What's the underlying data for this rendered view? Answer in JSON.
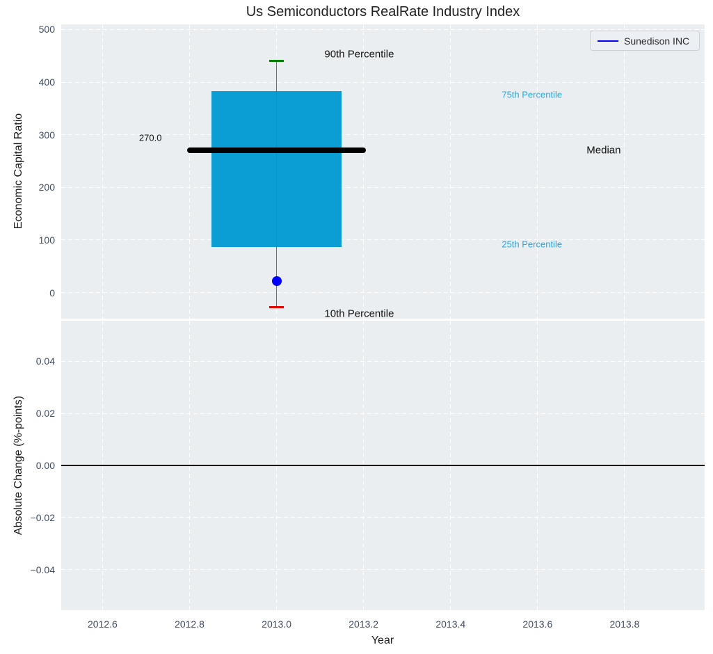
{
  "figure_title": "Us Semiconductors RealRate Industry Index",
  "legend": {
    "label": "Sunedison INC",
    "line_color": "#0000ff"
  },
  "colors": {
    "plot_bg": "#ebeef0",
    "grid": "#ffffff",
    "box_fill": "#0a9ed4",
    "median_line": "#000000",
    "whisker": "#6e6e6e",
    "cap_90": "#008000",
    "cap_10": "#e50000",
    "company_point": "#0000ff",
    "tick_label": "#3e4b63",
    "axis_label": "#1a1a1a",
    "percentile_label": "#2aa5dc",
    "zero_line": "#000000"
  },
  "chart_data": [
    {
      "type": "boxplot",
      "title": "Us Semiconductors RealRate Industry Index",
      "ylabel": "Economic Capital Ratio",
      "xlim": [
        2012.505,
        2013.984
      ],
      "ylim": [
        -49.6,
        509.9
      ],
      "grid": true,
      "yticks": [
        {
          "v": 0,
          "label": "0"
        },
        {
          "v": 100,
          "label": "100"
        },
        {
          "v": 200,
          "label": "200"
        },
        {
          "v": 300,
          "label": "300"
        },
        {
          "v": 400,
          "label": "400"
        },
        {
          "v": 500,
          "label": "500"
        }
      ],
      "xticks": [
        {
          "v": 2012.6,
          "label": ""
        },
        {
          "v": 2012.8,
          "label": ""
        },
        {
          "v": 2013.0,
          "label": ""
        },
        {
          "v": 2013.2,
          "label": ""
        },
        {
          "v": 2013.4,
          "label": ""
        },
        {
          "v": 2013.6,
          "label": ""
        },
        {
          "v": 2013.8,
          "label": ""
        }
      ],
      "box": {
        "x": 2013.0,
        "p10": -28,
        "p25": 87,
        "median": 270,
        "p75": 383,
        "p90": 440,
        "box_half_width": 0.15,
        "median_half_width": 0.205,
        "cap_half_width": 0.017
      },
      "company_point": {
        "name": "Sunedison INC",
        "x": 2013.0,
        "y": 22
      },
      "annotations": [
        {
          "id": "p90-label",
          "text": "90th Percentile",
          "x": 2013.19,
          "y": 453,
          "color": "#111111",
          "size": 15
        },
        {
          "id": "p75-label",
          "text": "75th Percentile",
          "x": 2013.587,
          "y": 376,
          "color": "#2aa5dc",
          "size": 13
        },
        {
          "id": "median-label",
          "text": "Median",
          "x": 2013.752,
          "y": 271,
          "color": "#111111",
          "size": 15
        },
        {
          "id": "median-value-label",
          "text": "270.0",
          "x": 2012.71,
          "y": 294,
          "color": "#111111",
          "size": 13
        },
        {
          "id": "p25-label",
          "text": "25th Percentile",
          "x": 2013.587,
          "y": 92,
          "color": "#2aa5dc",
          "size": 13
        },
        {
          "id": "p10-label",
          "text": "10th Percentile",
          "x": 2013.19,
          "y": -40,
          "color": "#111111",
          "size": 15
        }
      ],
      "legend_entries": [
        {
          "label": "Sunedison INC",
          "color": "#0000ff",
          "style": "line"
        }
      ]
    },
    {
      "type": "line",
      "ylabel": "Absolute Change (%-points)",
      "xlabel": "Year",
      "xlim": [
        2012.505,
        2013.984
      ],
      "ylim": [
        -0.0555,
        0.0555
      ],
      "grid": true,
      "zero_line": 0.0,
      "yticks": [
        {
          "v": -0.04,
          "label": "−0.04"
        },
        {
          "v": -0.02,
          "label": "−0.02"
        },
        {
          "v": 0.0,
          "label": "0.00"
        },
        {
          "v": 0.02,
          "label": "0.02"
        },
        {
          "v": 0.04,
          "label": "0.04"
        }
      ],
      "xticks": [
        {
          "v": 2012.6,
          "label": "2012.6"
        },
        {
          "v": 2012.8,
          "label": "2012.8"
        },
        {
          "v": 2013.0,
          "label": "2013.0"
        },
        {
          "v": 2013.2,
          "label": "2013.2"
        },
        {
          "v": 2013.4,
          "label": "2013.4"
        },
        {
          "v": 2013.6,
          "label": "2013.6"
        },
        {
          "v": 2013.8,
          "label": "2013.8"
        }
      ],
      "series": []
    }
  ]
}
